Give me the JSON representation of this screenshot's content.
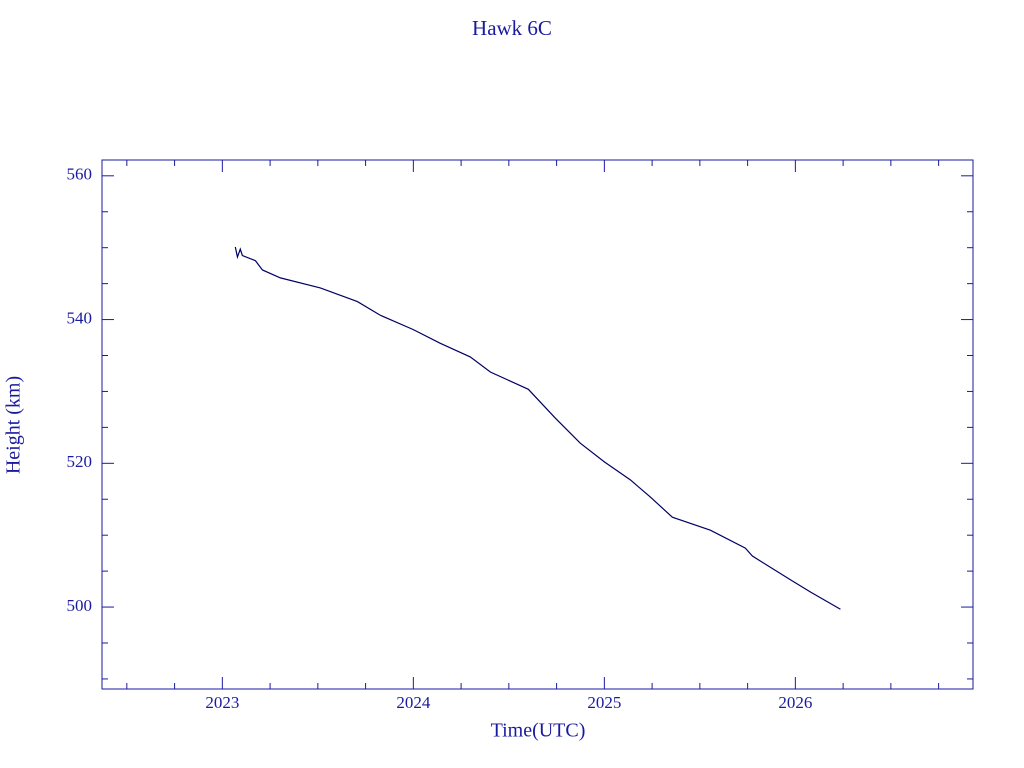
{
  "chart_data": {
    "type": "line",
    "title": "Hawk 6C",
    "x_label": "Time(UTC)",
    "y_label": "Height (km)",
    "x": [
      2023.068,
      2023.079,
      2023.094,
      2023.105,
      2023.173,
      2023.21,
      2023.304,
      2023.513,
      2023.707,
      2023.827,
      2024.0,
      2024.141,
      2024.298,
      2024.403,
      2024.602,
      2024.743,
      2024.874,
      2025.0,
      2025.136,
      2025.241,
      2025.356,
      2025.555,
      2025.738,
      2025.775,
      2025.974,
      2026.079,
      2026.236
    ],
    "values": [
      550.1,
      548.7,
      549.8,
      548.9,
      548.2,
      546.9,
      545.8,
      544.4,
      542.5,
      540.6,
      538.6,
      536.7,
      534.8,
      532.7,
      530.3,
      526.3,
      522.8,
      520.2,
      517.7,
      515.3,
      512.5,
      510.7,
      508.2,
      507.1,
      503.8,
      502.1,
      499.7
    ],
    "color": "#000066",
    "xlim": [
      2022.37,
      2026.93
    ],
    "ylim": [
      488.6,
      562.2
    ],
    "xticks": [
      2023,
      2024,
      2025,
      2026
    ],
    "yticks": [
      500,
      520,
      540,
      560
    ],
    "x_minor_ticks": [
      2022.5,
      2022.75,
      2023.25,
      2023.5,
      2023.75,
      2024.25,
      2024.5,
      2024.75,
      2025.25,
      2025.5,
      2025.75,
      2026.25,
      2026.5,
      2026.75
    ],
    "y_minor_ticks": [
      490,
      495,
      505,
      510,
      515,
      525,
      530,
      535,
      545,
      550,
      555
    ]
  }
}
